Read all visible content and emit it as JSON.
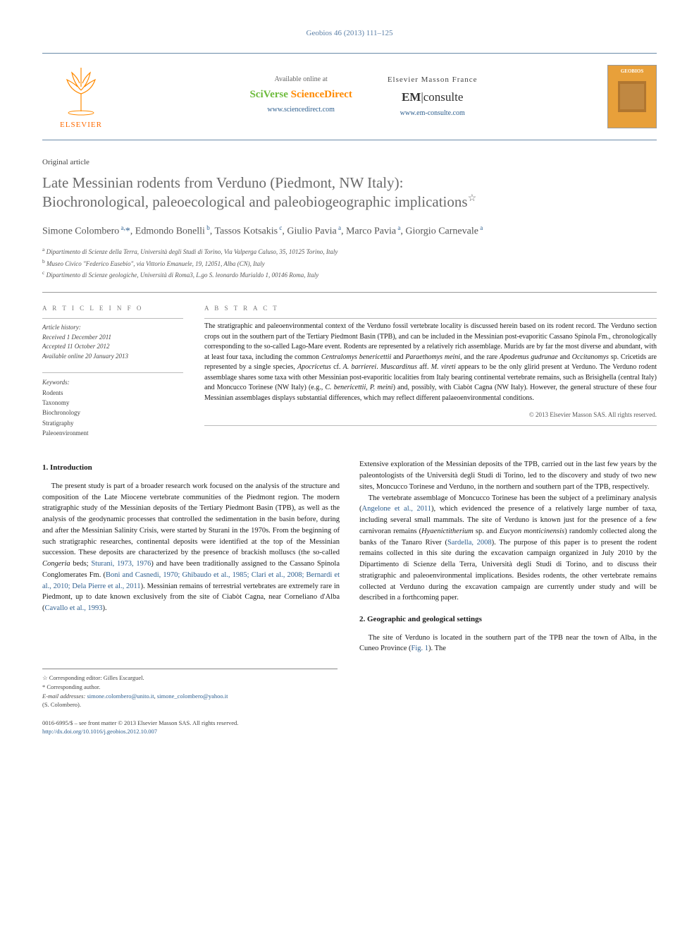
{
  "journal_header": "Geobios 46 (2013) 111–125",
  "top_panel": {
    "elsevier_label": "ELSEVIER",
    "avail_text": "Available online at",
    "sciverse_sci": "SciVerse ",
    "sciverse_direct": "ScienceDirect",
    "sciverse_url": "www.sciencedirect.com",
    "masson_head": "Elsevier Masson France",
    "em_prefix": "EM",
    "em_suffix": "|consulte",
    "em_url": "www.em-consulte.com",
    "thumb_title": "GEOBIOS"
  },
  "article_type": "Original article",
  "title_line1": "Late Messinian rodents from Verduno (Piedmont, NW Italy):",
  "title_line2": "Biochronological, paleoecological and paleobiogeographic implications",
  "title_star": "☆",
  "authors_html": "Simone Colombero<sup> a,</sup><span class='star-mark'>*</span>, Edmondo Bonelli<sup> b</sup>, Tassos Kotsakis<sup> c</sup>, Giulio Pavia<sup> a</sup>, Marco Pavia<sup> a</sup>, Giorgio Carnevale<sup> a</sup>",
  "affiliations": {
    "a": "Dipartimento di Scienze della Terra, Università degli Studi di Torino, Via Valperga Caluso, 35, 10125 Torino, Italy",
    "b": "Museo Civico \"Federico Eusebio\", via Vittorio Emanuele, 19, 12051, Alba (CN), Italy",
    "c": "Dipartimento di Scienze geologiche, Università di Roma3, L.go S. leonardo Murialdo 1, 00146 Roma, Italy"
  },
  "info_heading": "A R T I C L E   I N F O",
  "abstract_heading": "A B S T R A C T",
  "history": {
    "head": "Article history:",
    "received": "Received 1 December 2011",
    "accepted": "Accepted 11 October 2012",
    "online": "Available online 20 January 2013"
  },
  "keywords": {
    "head": "Keywords:",
    "list": [
      "Rodents",
      "Taxonomy",
      "Biochronology",
      "Stratigraphy",
      "Paleoenvironment"
    ]
  },
  "abstract_text": "The stratigraphic and paleoenvironmental context of the Verduno fossil vertebrate locality is discussed herein based on its rodent record. The Verduno section crops out in the southern part of the Tertiary Piedmont Basin (TPB), and can be included in the Messinian post-evaporitic Cassano Spinola Fm., chronologically corresponding to the so-called Lago-Mare event. Rodents are represented by a relatively rich assemblage. Murids are by far the most diverse and abundant, with at least four taxa, including the common Centralomys benericettii and Paraethomys meini, and the rare Apodemus gudrunae and Occitanomys sp. Cricetids are represented by a single species, Apocricetus cf. A. barrierei. Muscardinus aff. M. vireti appears to be the only glirid present at Verduno. The Verduno rodent assemblage shares some taxa with other Messinian post-evaporitic localities from Italy bearing continental vertebrate remains, such as Brisighella (central Italy) and Moncucco Torinese (NW Italy) (e.g., C. benericettii, P. meini) and, possibly, with Ciabòt Cagna (NW Italy). However, the general structure of these four Messinian assemblages displays substantial differences, which may reflect different palaeoenvironmental conditions.",
  "copyright": "© 2013 Elsevier Masson SAS. All rights reserved.",
  "sections": {
    "s1_head": "1. Introduction",
    "s1_p1": "The present study is part of a broader research work focused on the analysis of the structure and composition of the Late Miocene vertebrate communities of the Piedmont region. The modern stratigraphic study of the Messinian deposits of the Tertiary Piedmont Basin (TPB), as well as the analysis of the geodynamic processes that controlled the sedimentation in the basin before, during and after the Messinian Salinity Crisis, were started by Sturani in the 1970s. From the beginning of such stratigraphic researches, continental deposits were identified at the top of the Messinian succession. These deposits are characterized by the presence of brackish molluscs (the so-called Congeria beds; ",
    "s1_cite1": "Sturani, 1973, 1976",
    "s1_p1b": ") and have been traditionally assigned to the Cassano Spinola Conglomerates Fm. (",
    "s1_cite2": "Boni and Casnedi, 1970; Ghibaudo et al., 1985; Clari et al., 2008; Bernardi et al., 2010; Dela Pierre et al., 2011",
    "s1_p1c": "). Messinian remains of terrestrial vertebrates are extremely rare in Piedmont, up to date known exclusively from the site of Ciabòt Cagna, near Corneliano d'Alba (",
    "s1_cite3": "Cavallo et al., 1993",
    "s1_p1d": ").",
    "s1_p2a": "Extensive exploration of the Messinian deposits of the TPB, carried out in the last few years by the paleontologists of the Università degli Studi di Torino, led to the discovery and study of two new sites, Moncucco Torinese and Verduno, in the northern and southern part of the TPB, respectively.",
    "s1_p3a": "The vertebrate assemblage of Moncucco Torinese has been the subject of a preliminary analysis (",
    "s1_cite4": "Angelone et al., 2011",
    "s1_p3b": "), which evidenced the presence of a relatively large number of taxa, including several small mammals. The site of Verduno is known just for the presence of a few carnivoran remains (Hyaenictitherium sp. and Eucyon monticinensis) randomly collected along the banks of the Tanaro River (",
    "s1_cite5": "Sardella, 2008",
    "s1_p3c": "). The purpose of this paper is to present the rodent remains collected in this site during the excavation campaign organized in July 2010 by the Dipartimento di Scienze della Terra, Università degli Studi di Torino, and to discuss their stratigraphic and paleoenvironmental implications. Besides rodents, the other vertebrate remains collected at Verduno during the excavation campaign are currently under study and will be described in a forthcoming paper.",
    "s2_head": "2. Geographic and geological settings",
    "s2_p1a": "The site of Verduno is located in the southern part of the TPB near the town of Alba, in the Cuneo Province (",
    "s2_cite1": "Fig. 1",
    "s2_p1b": "). The"
  },
  "footnotes": {
    "star": "☆ Corresponding editor: Gilles Escarguel.",
    "corr": "* Corresponding author.",
    "email_label": "E-mail addresses:",
    "email1": "simone.colombero@unito.it",
    "email2": "simone_colombero@yahoo.it",
    "email_person": "(S. Colombero)."
  },
  "footer": {
    "issn": "0016-6995/$ – see front matter © 2013 Elsevier Masson SAS. All rights reserved.",
    "doi_url": "http://dx.doi.org/10.1016/j.geobios.2012.10.007"
  },
  "colors": {
    "link": "#2e5f8f",
    "orange": "#ff8a00",
    "green": "#6dbb3c",
    "header_blue": "#5b7fa6",
    "gray_text": "#6a6a6a"
  }
}
